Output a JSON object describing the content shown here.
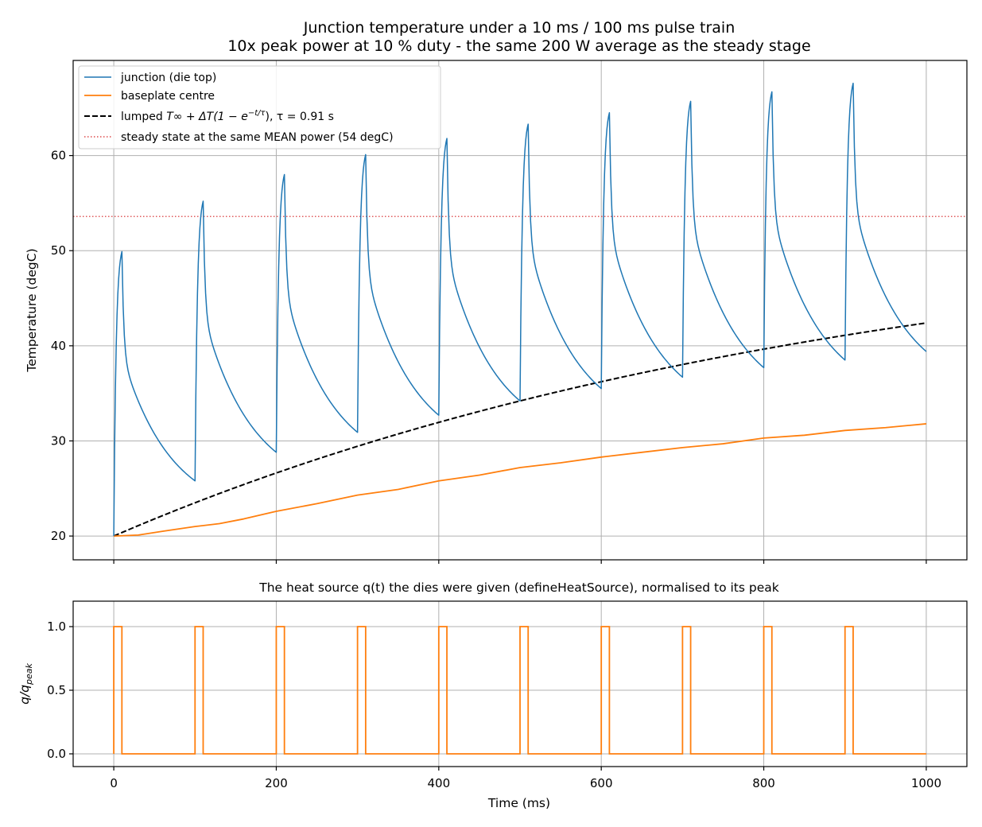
{
  "chart_data": [
    {
      "type": "line",
      "title": "Junction temperature under a 10 ms / 100 ms pulse train\n10x peak power at 10 % duty - the same 200 W average as the steady stage",
      "title_lines": [
        "Junction temperature under a 10 ms / 100 ms pulse train",
        "10x peak power at 10 % duty - the same 200 W average as the steady stage"
      ],
      "xlabel": "",
      "ylabel": "Temperature (degC)",
      "xlim": [
        -50,
        1050
      ],
      "ylim": [
        17.5,
        70
      ],
      "xticks": [
        0,
        200,
        400,
        600,
        800,
        1000
      ],
      "yticks": [
        20,
        30,
        40,
        50,
        60
      ],
      "x_tick_labels_visible": false,
      "grid": true,
      "legend_position": "top-left",
      "legend": [
        {
          "label": "junction (die top)",
          "style": "solid",
          "color": "#1f77b4"
        },
        {
          "label": "baseplate centre",
          "style": "solid",
          "color": "#ff7f0e"
        },
        {
          "label_prefix": "lumped ",
          "label_math": "T∞ + ΔT(1 − e",
          "label_sup": "−t/τ",
          "label_suffix": "), τ = 0.91 s",
          "style": "dashed",
          "color": "#000000"
        },
        {
          "label": "steady state at the same MEAN power (54 degC)",
          "style": "dotted",
          "color": "#d62728"
        }
      ],
      "series": [
        {
          "name": "junction (die top)",
          "color": "#1f77b4",
          "pulse_period_ms": 100,
          "pulse_on_ms": 10,
          "start_temp": 20,
          "end_time_ms": 1000,
          "end_temp": 39.4,
          "peaks": [
            {
              "t": 10,
              "T": 49.9
            },
            {
              "t": 110,
              "T": 55.2
            },
            {
              "t": 210,
              "T": 58.0
            },
            {
              "t": 310,
              "T": 60.1
            },
            {
              "t": 410,
              "T": 61.8
            },
            {
              "t": 510,
              "T": 63.3
            },
            {
              "t": 610,
              "T": 64.5
            },
            {
              "t": 710,
              "T": 65.7
            },
            {
              "t": 810,
              "T": 66.7
            },
            {
              "t": 910,
              "T": 67.6
            }
          ],
          "troughs": [
            {
              "t": 0,
              "T": 20.0
            },
            {
              "t": 100,
              "T": 25.8
            },
            {
              "t": 200,
              "T": 28.8
            },
            {
              "t": 300,
              "T": 30.9
            },
            {
              "t": 400,
              "T": 32.7
            },
            {
              "t": 500,
              "T": 34.2
            },
            {
              "t": 600,
              "T": 35.5
            },
            {
              "t": 700,
              "T": 36.7
            },
            {
              "t": 800,
              "T": 37.7
            },
            {
              "t": 900,
              "T": 38.5
            }
          ]
        },
        {
          "name": "baseplate centre",
          "color": "#ff7f0e",
          "x": [
            0,
            30,
            60,
            100,
            130,
            160,
            200,
            250,
            300,
            350,
            400,
            450,
            500,
            550,
            600,
            650,
            700,
            750,
            800,
            850,
            900,
            950,
            1000
          ],
          "y": [
            20.0,
            20.1,
            20.5,
            21.0,
            21.3,
            21.8,
            22.6,
            23.4,
            24.3,
            24.9,
            25.8,
            26.4,
            27.2,
            27.7,
            28.3,
            28.8,
            29.3,
            29.7,
            30.3,
            30.6,
            31.1,
            31.4,
            31.8
          ]
        },
        {
          "name": "lumped",
          "color": "#000000",
          "style": "dashed",
          "model": "T_inf + dT(1 - exp(-t/tau))",
          "T0": 20,
          "dT": 33.6,
          "tau_ms": 910,
          "x_range": [
            0,
            1000
          ]
        },
        {
          "name": "steady state at the same MEAN power (54 degC)",
          "color": "#d62728",
          "style": "dotted",
          "y": 53.6
        }
      ]
    },
    {
      "type": "line",
      "title": "The heat source q(t) the dies were given (defineHeatSource), normalised to its peak",
      "xlabel": "Time (ms)",
      "ylabel_base": "q/q",
      "ylabel_sub": "peak",
      "xlim": [
        -50,
        1050
      ],
      "ylim": [
        -0.1,
        1.2
      ],
      "xticks": [
        0,
        200,
        400,
        600,
        800,
        1000
      ],
      "yticks": [
        0.0,
        0.5,
        1.0
      ],
      "ytick_labels": [
        "0.0",
        "0.5",
        "1.0"
      ],
      "grid": true,
      "series": [
        {
          "name": "",
          "color": "#ff7f0e",
          "pulse_period_ms": 100,
          "pulse_on_ms": 10,
          "pulse_starts": [
            0,
            100,
            200,
            300,
            400,
            500,
            600,
            700,
            800,
            900
          ],
          "on_value": 1.0,
          "off_value": 0.0,
          "x_range": [
            0,
            1000
          ]
        }
      ]
    }
  ]
}
